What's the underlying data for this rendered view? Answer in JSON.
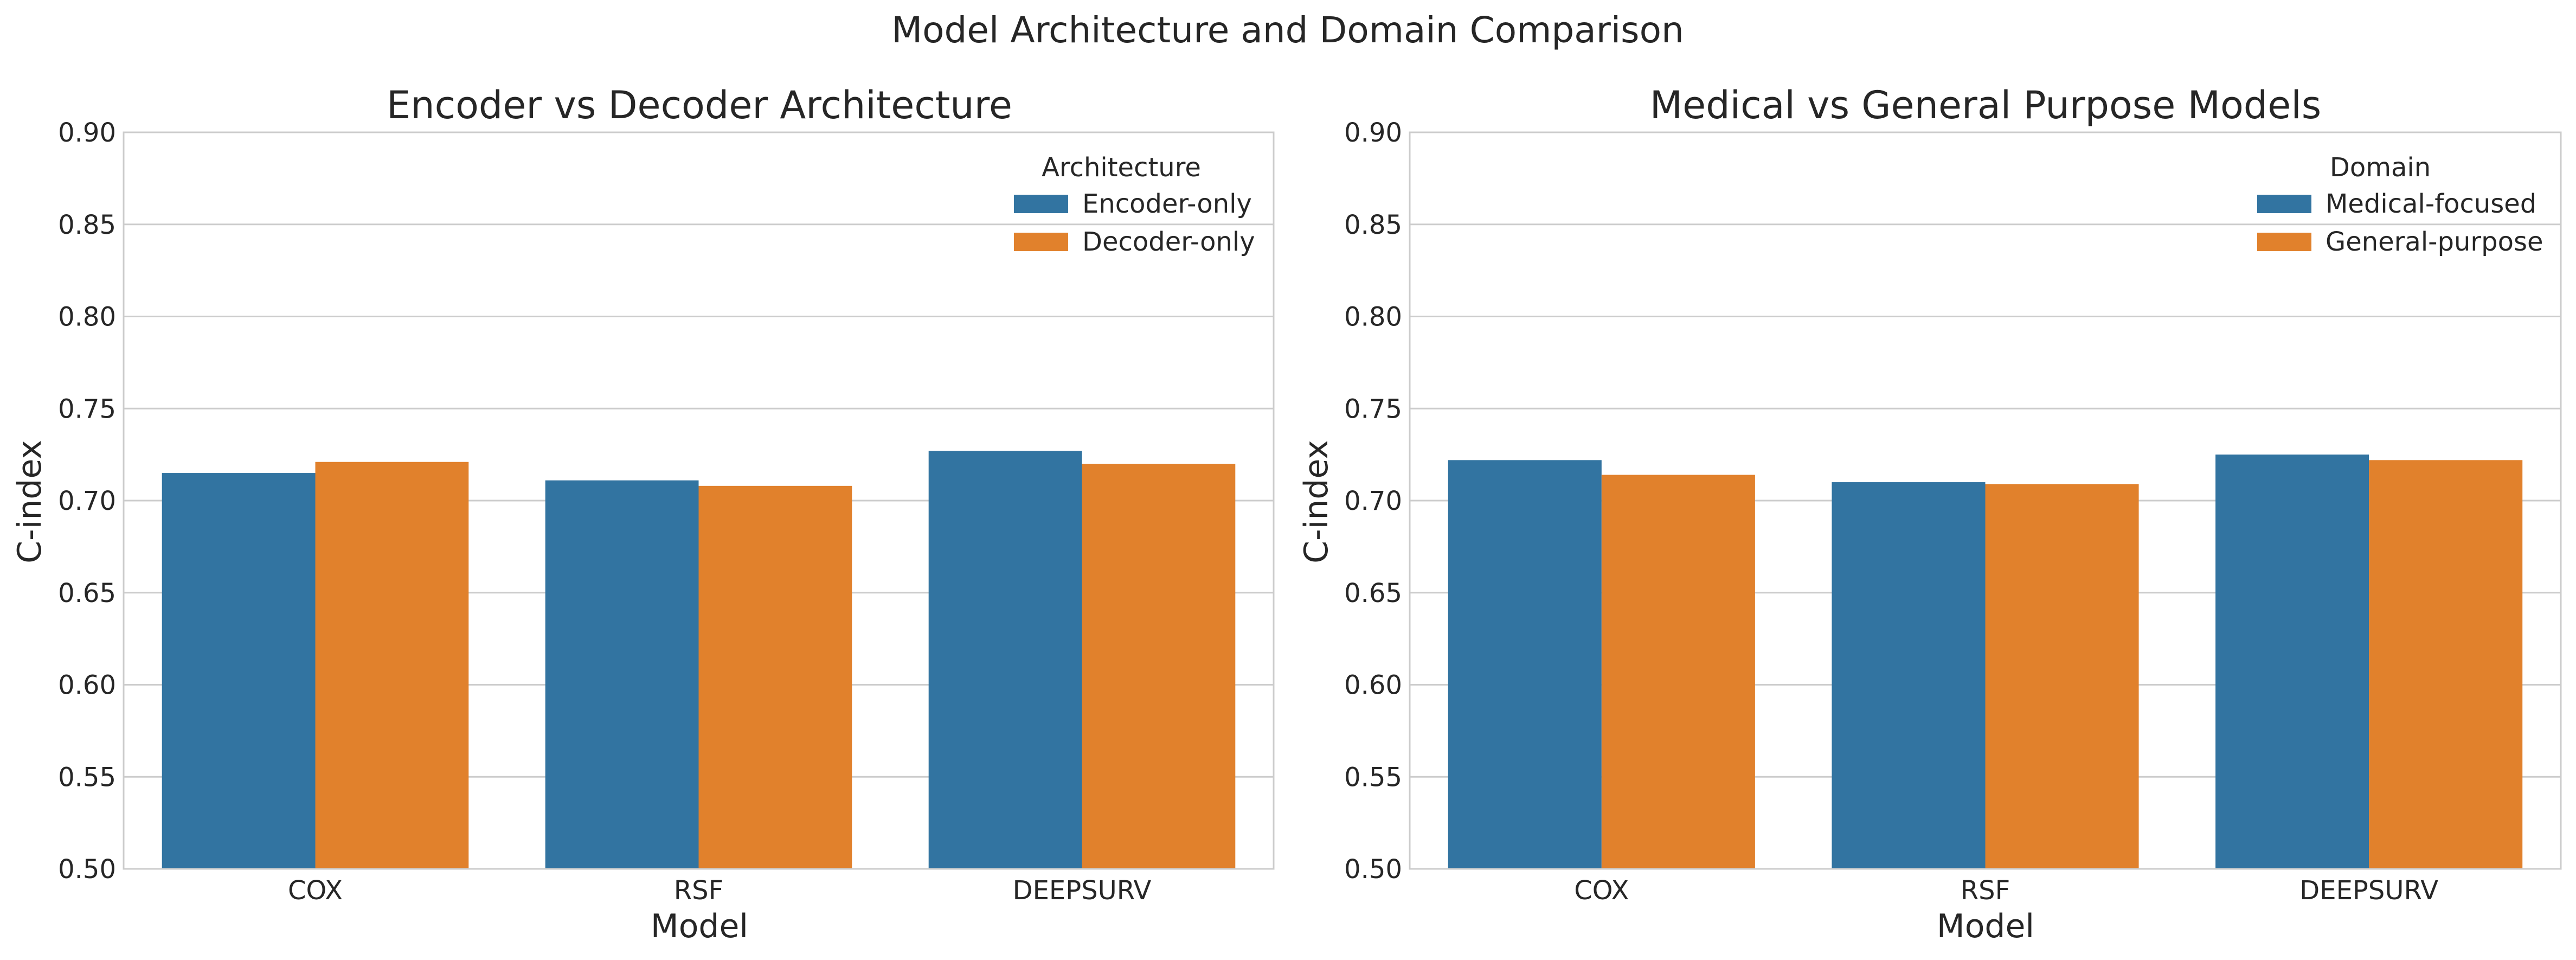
{
  "figure": {
    "title": "Model Architecture and Domain Comparison"
  },
  "chart_data": [
    {
      "type": "bar",
      "title": "Encoder vs Decoder Architecture",
      "xlabel": "Model",
      "ylabel": "C-index",
      "categories": [
        "COX",
        "RSF",
        "DEEPSURV"
      ],
      "ylim": [
        0.5,
        0.9
      ],
      "yticks": [
        "0.50",
        "0.55",
        "0.60",
        "0.65",
        "0.70",
        "0.75",
        "0.80",
        "0.85",
        "0.90"
      ],
      "grid": true,
      "legend": {
        "title": "Architecture",
        "placement": "top-right"
      },
      "series": [
        {
          "name": "Encoder-only",
          "color": "#3274a1",
          "values": [
            0.715,
            0.711,
            0.727
          ]
        },
        {
          "name": "Decoder-only",
          "color": "#e1812c",
          "values": [
            0.721,
            0.708,
            0.72
          ]
        }
      ]
    },
    {
      "type": "bar",
      "title": "Medical vs General Purpose Models",
      "xlabel": "Model",
      "ylabel": "C-index",
      "categories": [
        "COX",
        "RSF",
        "DEEPSURV"
      ],
      "ylim": [
        0.5,
        0.9
      ],
      "yticks": [
        "0.50",
        "0.55",
        "0.60",
        "0.65",
        "0.70",
        "0.75",
        "0.80",
        "0.85",
        "0.90"
      ],
      "grid": true,
      "legend": {
        "title": "Domain",
        "placement": "top-right"
      },
      "series": [
        {
          "name": "Medical-focused",
          "color": "#3274a1",
          "values": [
            0.722,
            0.71,
            0.725
          ]
        },
        {
          "name": "General-purpose",
          "color": "#e1812c",
          "values": [
            0.714,
            0.709,
            0.722
          ]
        }
      ]
    }
  ]
}
